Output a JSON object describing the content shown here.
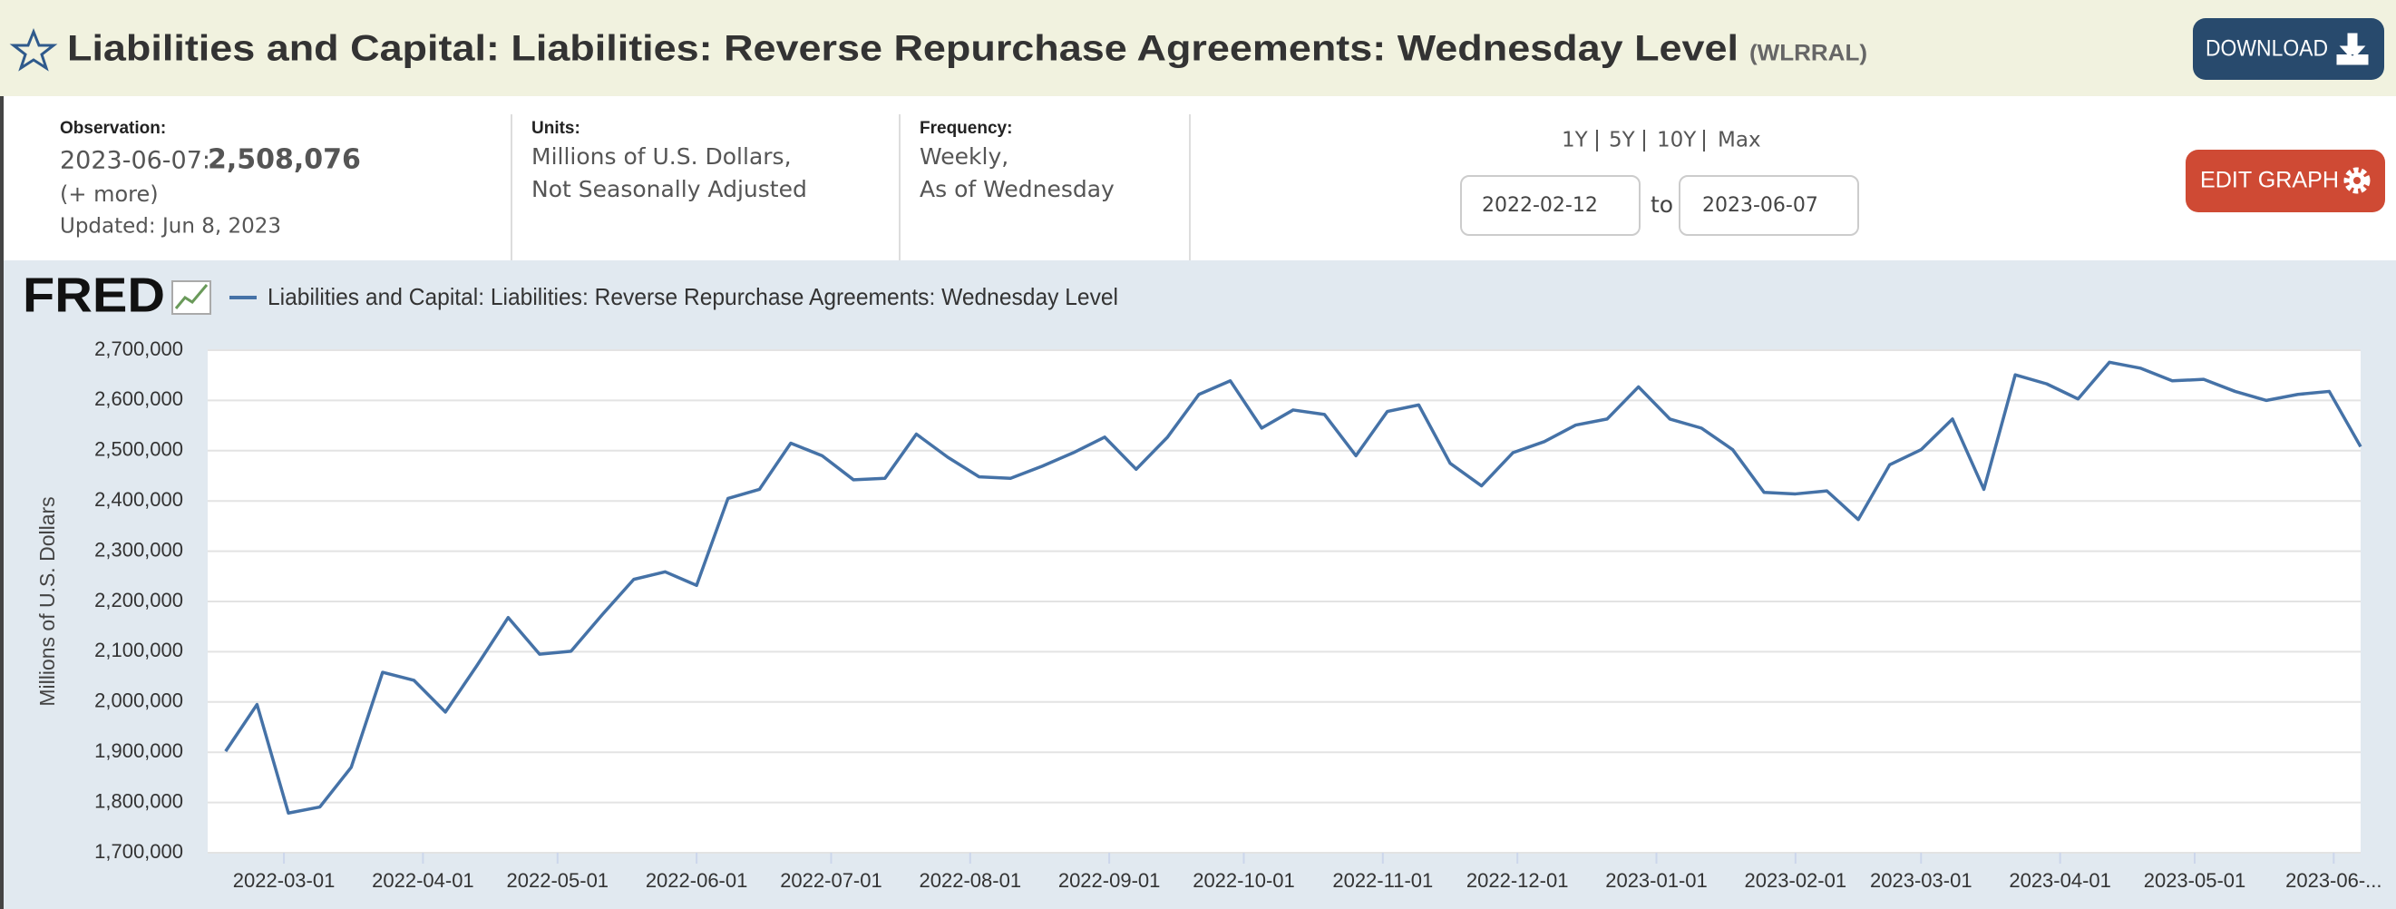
{
  "header": {
    "title": "Liabilities and Capital: Liabilities: Reverse Repurchase Agreements: Wednesday Level",
    "series_id": "(WLRRAL)",
    "download": "DOWNLOAD"
  },
  "info": {
    "observation_label": "Observation:",
    "observation_date": "2023-06-07:",
    "observation_value": "2,508,076",
    "more": "(+ more)",
    "updated": "Updated: Jun 8, 2023",
    "units_label": "Units:",
    "units": [
      "Millions of U.S. Dollars,",
      "Not Seasonally Adjusted"
    ],
    "frequency_label": "Frequency:",
    "frequency": [
      "Weekly,",
      "As of Wednesday"
    ],
    "ranges": [
      "1Y",
      "5Y",
      "10Y",
      "Max"
    ],
    "date_to": "to",
    "edit_graph": "EDIT GRAPH"
  },
  "chart_data": {
    "type": "line",
    "logo": "FRED",
    "ylabel": "Millions of U.S. Dollars",
    "x": [
      "2022-02-16",
      "2022-02-23",
      "2022-03-02",
      "2022-03-09",
      "2022-03-16",
      "2022-03-23",
      "2022-03-30",
      "2022-04-06",
      "2022-04-13",
      "2022-04-20",
      "2022-04-27",
      "2022-05-04",
      "2022-05-11",
      "2022-05-18",
      "2022-05-25",
      "2022-06-01",
      "2022-06-08",
      "2022-06-15",
      "2022-06-22",
      "2022-06-29",
      "2022-07-06",
      "2022-07-13",
      "2022-07-20",
      "2022-07-27",
      "2022-08-03",
      "2022-08-10",
      "2022-08-17",
      "2022-08-24",
      "2022-08-31",
      "2022-09-07",
      "2022-09-14",
      "2022-09-21",
      "2022-09-28",
      "2022-10-05",
      "2022-10-12",
      "2022-10-19",
      "2022-10-26",
      "2022-11-02",
      "2022-11-09",
      "2022-11-16",
      "2022-11-23",
      "2022-11-30",
      "2022-12-07",
      "2022-12-14",
      "2022-12-21",
      "2022-12-28",
      "2023-01-04",
      "2023-01-11",
      "2023-01-18",
      "2023-01-25",
      "2023-02-01",
      "2023-02-08",
      "2023-02-15",
      "2023-02-22",
      "2023-03-01",
      "2023-03-08",
      "2023-03-15",
      "2023-03-22",
      "2023-03-29",
      "2023-04-05",
      "2023-04-12",
      "2023-04-19",
      "2023-04-26",
      "2023-05-03",
      "2023-05-10",
      "2023-05-17",
      "2023-05-24",
      "2023-05-31",
      "2023-06-07"
    ],
    "series": [
      {
        "name": "Liabilities and Capital: Liabilities: Reverse Repurchase Agreements: Wednesday Level",
        "color": "#4572a7",
        "values": [
          1902000,
          1995000,
          1779000,
          1791000,
          1870000,
          2059000,
          2043000,
          1980000,
          2072000,
          2168000,
          2095000,
          2101000,
          2174000,
          2244000,
          2259000,
          2232000,
          2405000,
          2423000,
          2515000,
          2490000,
          2442000,
          2445000,
          2533000,
          2487000,
          2448000,
          2445000,
          2469000,
          2496000,
          2527000,
          2463000,
          2527000,
          2612000,
          2639000,
          2545000,
          2581000,
          2572000,
          2490000,
          2578000,
          2591000,
          2475000,
          2430000,
          2496000,
          2518000,
          2551000,
          2563000,
          2627000,
          2563000,
          2545000,
          2502000,
          2417000,
          2414000,
          2420000,
          2363000,
          2472000,
          2502000,
          2563000,
          2423000,
          2651000,
          2633000,
          2603000,
          2676000,
          2664000,
          2639000,
          2642000,
          2618000,
          2600000,
          2612000,
          2618000,
          2508076
        ]
      }
    ],
    "xlim": [
      "2022-02-12",
      "2023-06-07"
    ],
    "xticks": [
      "2022-03-01",
      "2022-04-01",
      "2022-05-01",
      "2022-06-01",
      "2022-07-01",
      "2022-08-01",
      "2022-09-01",
      "2022-10-01",
      "2022-11-01",
      "2022-12-01",
      "2023-01-01",
      "2023-02-01",
      "2023-03-01",
      "2023-04-01",
      "2023-05-01",
      {
        "value": "2023-06-01",
        "label": "2023-06-..."
      }
    ],
    "ylim": [
      1700000,
      2700000
    ],
    "yticks": [
      {
        "value": 1700000,
        "label": "1,700,000"
      },
      {
        "value": 1800000,
        "label": "1,800,000"
      },
      {
        "value": 1900000,
        "label": "1,900,000"
      },
      {
        "value": 2000000,
        "label": "2,000,000"
      },
      {
        "value": 2100000,
        "label": "2,100,000"
      },
      {
        "value": 2200000,
        "label": "2,200,000"
      },
      {
        "value": 2300000,
        "label": "2,300,000"
      },
      {
        "value": 2400000,
        "label": "2,400,000"
      },
      {
        "value": 2500000,
        "label": "2,500,000"
      },
      {
        "value": 2600000,
        "label": "2,600,000"
      },
      {
        "value": 2700000,
        "label": "2,700,000"
      }
    ],
    "grid": true
  }
}
